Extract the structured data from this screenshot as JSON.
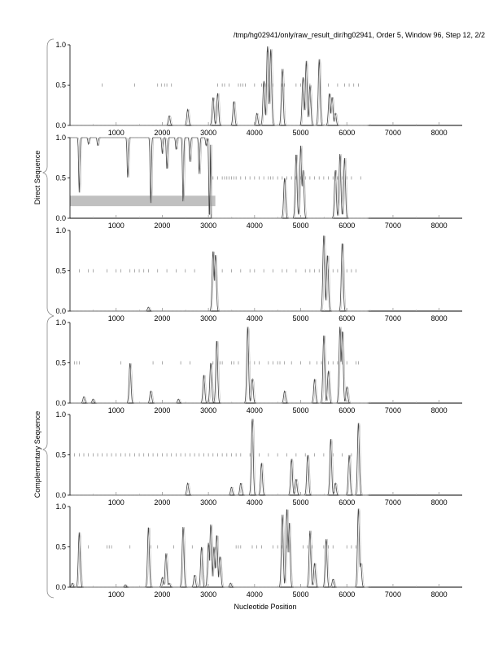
{
  "chart_data": {
    "type": "line",
    "title": "/tmp/hg02941/only/raw_result_dir/hg02941, Order 5, Window 96, Step 12, 2/2",
    "xlabel": "Nucleotide Position",
    "group_labels": [
      "Direct Sequence",
      "Complementary Sequence"
    ],
    "xlim": [
      0,
      8500
    ],
    "ylim": [
      0,
      1
    ],
    "x_ticks": [
      1000,
      2000,
      3000,
      4000,
      5000,
      6000,
      7000,
      8000
    ],
    "x_tick_labels": [
      "1000",
      "2000",
      "3000",
      "4000",
      "5000",
      "6000",
      "7000",
      "8000"
    ],
    "y_tick_labels": [
      "0.0",
      "0.5",
      "1.0"
    ],
    "grid": false,
    "panels": [
      {
        "group": "Direct Sequence",
        "peaks": [
          [
            2150,
            0.12
          ],
          [
            2550,
            0.2
          ],
          [
            3100,
            0.35
          ],
          [
            3200,
            0.4
          ],
          [
            3550,
            0.3
          ],
          [
            4050,
            0.15
          ],
          [
            4200,
            0.55
          ],
          [
            4280,
            0.98
          ],
          [
            4350,
            0.95
          ],
          [
            4600,
            0.7
          ],
          [
            5050,
            0.6
          ],
          [
            5120,
            0.8
          ],
          [
            5200,
            0.5
          ],
          [
            5400,
            0.82
          ],
          [
            5620,
            0.4
          ],
          [
            5680,
            0.35
          ],
          [
            5750,
            0.15
          ]
        ],
        "dips": [],
        "marks": [
          700,
          1400,
          1900,
          1980,
          2050,
          2100,
          2200,
          3200,
          3300,
          3350,
          3450,
          3650,
          3700,
          3750,
          3800,
          4000,
          4150,
          4200,
          4250,
          4300,
          4400,
          4600,
          4650,
          4900,
          5000,
          5100,
          5200,
          5600,
          5800,
          5950,
          6050,
          6150,
          6250
        ],
        "highlight": null
      },
      {
        "group": "Direct Sequence",
        "peaks": [
          [
            4650,
            0.5
          ],
          [
            4900,
            0.8
          ],
          [
            5000,
            0.9
          ],
          [
            5050,
            0.6
          ],
          [
            5750,
            0.6
          ],
          [
            5850,
            0.8
          ],
          [
            5950,
            0.75
          ]
        ],
        "dips": [
          [
            200,
            0.68
          ],
          [
            400,
            0.08
          ],
          [
            600,
            0.1
          ],
          [
            1250,
            0.5
          ],
          [
            1750,
            0.82
          ],
          [
            2000,
            0.2
          ],
          [
            2100,
            0.4
          ],
          [
            2300,
            0.15
          ],
          [
            2450,
            0.8
          ],
          [
            2600,
            0.3
          ],
          [
            2800,
            0.45
          ],
          [
            2950,
            0.1
          ],
          [
            3020,
            1.0
          ]
        ],
        "dip_end": 3050,
        "marks": [
          3100,
          3200,
          3300,
          3350,
          3400,
          3450,
          3500,
          3550,
          3600,
          3700,
          3800,
          3900,
          4000,
          4100,
          4200,
          4300,
          4350,
          4400,
          4500,
          4600,
          4700,
          4800,
          4900,
          5000,
          5100,
          5200,
          5300,
          5400,
          5500,
          5600,
          5700,
          5800,
          5900,
          6000,
          6100,
          6300
        ],
        "highlight": [
          0,
          3150,
          0.15,
          0.28
        ]
      },
      {
        "group": "Direct Sequence",
        "peaks": [
          [
            1700,
            0.05
          ],
          [
            3100,
            0.75
          ],
          [
            3150,
            0.7
          ],
          [
            5500,
            0.95
          ],
          [
            5580,
            0.7
          ],
          [
            5900,
            0.85
          ]
        ],
        "dips": [],
        "marks": [
          200,
          400,
          500,
          800,
          1000,
          1100,
          1300,
          1400,
          1500,
          1600,
          1700,
          1900,
          2100,
          2300,
          2500,
          2700,
          3300,
          3500,
          3700,
          3900,
          4000,
          4200,
          4400,
          4600,
          4700,
          4900,
          5100,
          5200,
          5300,
          5400,
          5600,
          5700,
          5800,
          6000,
          6100,
          6200
        ],
        "highlight": null
      },
      {
        "group": "Complementary Sequence",
        "peaks": [
          [
            300,
            0.08
          ],
          [
            500,
            0.05
          ],
          [
            1300,
            0.5
          ],
          [
            1750,
            0.15
          ],
          [
            2350,
            0.05
          ],
          [
            2900,
            0.35
          ],
          [
            3050,
            0.5
          ],
          [
            3180,
            0.78
          ],
          [
            3850,
            0.95
          ],
          [
            3950,
            0.3
          ],
          [
            4650,
            0.15
          ],
          [
            5300,
            0.3
          ],
          [
            5500,
            0.85
          ],
          [
            5600,
            0.4
          ],
          [
            5850,
            0.95
          ],
          [
            5900,
            0.9
          ],
          [
            6000,
            0.2
          ]
        ],
        "dips": [],
        "marks": [
          100,
          150,
          200,
          1100,
          1800,
          2000,
          2400,
          2600,
          3100,
          3250,
          3300,
          3500,
          3550,
          3650,
          3900,
          4000,
          4100,
          4300,
          4400,
          4500,
          4550,
          4650,
          4800,
          5000,
          5200,
          5350,
          5450,
          5600,
          5700,
          5800,
          5900,
          6000,
          6200,
          6250
        ],
        "highlight": null
      },
      {
        "group": "Complementary Sequence",
        "peaks": [
          [
            2550,
            0.15
          ],
          [
            3500,
            0.1
          ],
          [
            3700,
            0.15
          ],
          [
            3950,
            0.95
          ],
          [
            4150,
            0.4
          ],
          [
            4800,
            0.45
          ],
          [
            4900,
            0.2
          ],
          [
            5150,
            0.5
          ],
          [
            5650,
            0.7
          ],
          [
            5750,
            0.15
          ],
          [
            6050,
            0.5
          ],
          [
            6250,
            0.9
          ]
        ],
        "dips": [],
        "marks": [
          100,
          200,
          300,
          400,
          500,
          600,
          700,
          800,
          900,
          1000,
          1100,
          1200,
          1300,
          1400,
          1500,
          1600,
          1700,
          1800,
          1900,
          2000,
          2100,
          2200,
          2300,
          2400,
          2500,
          2600,
          2700,
          2800,
          2900,
          3000,
          3100,
          3200,
          3300,
          3400,
          3500,
          3600,
          3700,
          3900,
          4100,
          4300,
          4500,
          4700,
          4900,
          5100,
          5300,
          5500,
          5700,
          5900,
          6100
        ],
        "highlight": null
      },
      {
        "group": "Complementary Sequence",
        "peaks": [
          [
            50,
            0.05
          ],
          [
            200,
            0.68
          ],
          [
            1200,
            0.03
          ],
          [
            1700,
            0.75
          ],
          [
            2000,
            0.12
          ],
          [
            2080,
            0.42
          ],
          [
            2150,
            0.05
          ],
          [
            2450,
            0.75
          ],
          [
            2700,
            0.15
          ],
          [
            2850,
            0.5
          ],
          [
            3000,
            0.55
          ],
          [
            3050,
            0.78
          ],
          [
            3120,
            0.5
          ],
          [
            3180,
            0.65
          ],
          [
            3250,
            0.38
          ],
          [
            3480,
            0.05
          ],
          [
            4600,
            0.9
          ],
          [
            4700,
            0.98
          ],
          [
            4750,
            0.8
          ],
          [
            5200,
            0.7
          ],
          [
            5300,
            0.3
          ],
          [
            5550,
            0.6
          ],
          [
            5700,
            0.1
          ],
          [
            6250,
            0.98
          ],
          [
            6300,
            0.3
          ]
        ],
        "dips": [],
        "marks": [
          400,
          800,
          850,
          900,
          1300,
          1750,
          1900,
          2250,
          2650,
          3600,
          3650,
          3700,
          3950,
          4050,
          4150,
          4400,
          4500,
          4600,
          4700,
          5050,
          5150,
          5250,
          5500,
          5600,
          5700,
          6000,
          6100,
          6200
        ],
        "highlight": null
      }
    ]
  }
}
